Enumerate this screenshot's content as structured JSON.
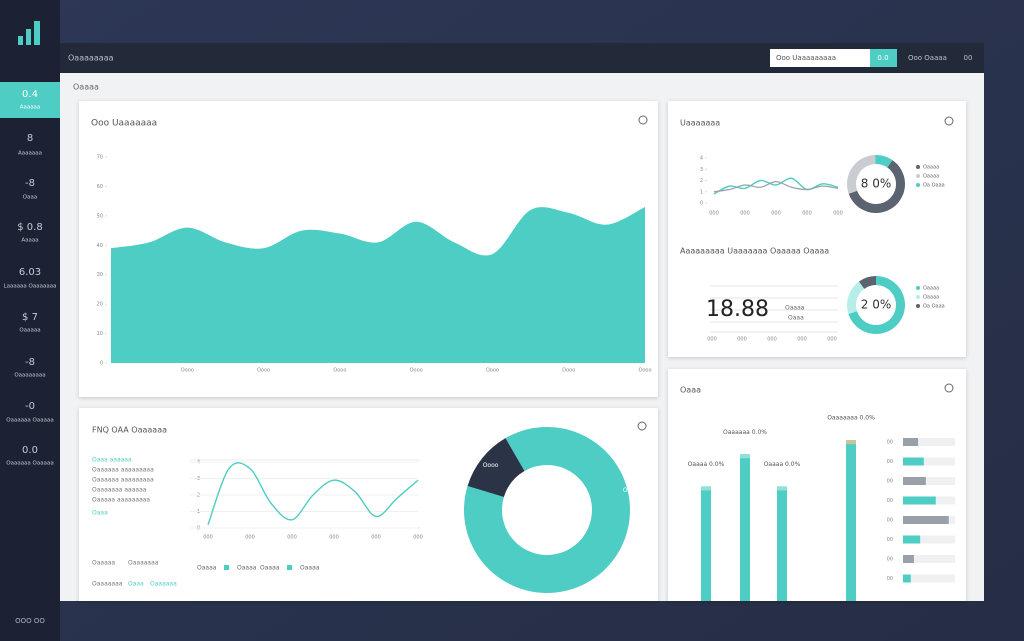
{
  "sidebar": {
    "items": [
      {
        "value": "0.4",
        "label": "Aaaaaa"
      },
      {
        "value": "8",
        "label": "Aaaaaaa"
      },
      {
        "value": "-8",
        "label": "Oaaa"
      },
      {
        "value": "$ 0.8",
        "label": "Aaaaa"
      },
      {
        "value": "6.03",
        "label": "Laaaaaa Oaaaaaaa"
      },
      {
        "value": "$ 7",
        "label": "Oaaaaa"
      },
      {
        "value": "-8",
        "label": "Oaaaaaaaa"
      },
      {
        "value": "-0",
        "label": "Oaaaaaa Oaaaaa"
      },
      {
        "value": "0.0",
        "label": "Oaaaaaa Oaaaaa"
      }
    ],
    "footer": "OOO OO"
  },
  "header": {
    "title": "Oaaaaaaaa",
    "search": "Ooo Uaaaaaaaaa",
    "button": "0.0",
    "user": "Ooo Oaaaa",
    "icon": "00"
  },
  "breadcrumb": "Oaaaa",
  "panel_text": {
    "list": [
      "Oaaa aaaaaa",
      "Oaaaaaa aaaaaaaaa",
      "Oaaaaaa aaaaaaaaa",
      "Oaaaaaaa aaaaaa",
      "Oaaaaa aaaaaaaaa",
      "Oaaa"
    ],
    "legend": [
      "Oaaaa",
      "Oaaaa",
      "Oaaaa",
      "Oaaaa"
    ],
    "notes": [
      "Oaaaaa",
      "Oaaaaaaa",
      "Oaaaaaaa",
      "Oaaa",
      "Oaaaaaa"
    ]
  },
  "chart_data": [
    {
      "type": "area",
      "title": "Ooo Uaaaaaaa",
      "categories": [
        null,
        null,
        "Oooo",
        null,
        "Oooo",
        null,
        "Oooo",
        null,
        "Oooo",
        null,
        "Oooo",
        null,
        "Oooo",
        null,
        "Oooo"
      ],
      "values": [
        39,
        41,
        46,
        41,
        39,
        45,
        44,
        41,
        48,
        41,
        37,
        52,
        51,
        47,
        53
      ],
      "color": "#4ecdc4",
      "ylim": [
        0,
        70
      ],
      "yticks": [
        0,
        10,
        20,
        30,
        40,
        50,
        60,
        70
      ]
    },
    {
      "type": "line",
      "title": "Uaaaaaaa",
      "categories": [
        "000",
        null,
        "000",
        null,
        "000",
        null,
        "000",
        null,
        "000"
      ],
      "series": [
        {
          "color": "#4ecdc4",
          "values": [
            0.8,
            1.5,
            1.3,
            2.0,
            1.6,
            2.2,
            1.2,
            1.7,
            1.4
          ]
        },
        {
          "color": "#9aa0a8",
          "values": [
            1.0,
            1.2,
            1.6,
            1.4,
            1.9,
            1.4,
            1.2,
            1.5,
            1.3
          ]
        }
      ],
      "ylim": [
        0,
        4
      ],
      "yticks": [
        0,
        1,
        2,
        3,
        4
      ]
    },
    {
      "type": "pie",
      "center_label": "8 0%",
      "categories": [
        "Oaaaa",
        "Oaaaa",
        "Oa Oaaa"
      ],
      "values": [
        60,
        30,
        10
      ],
      "colors": [
        "#5b6270",
        "#c9ccd1",
        "#4ecdc4"
      ]
    },
    {
      "type": "kpi",
      "title": "Aaaaaaaaa Uaaaaaaa Oaaaaa Oaaaa",
      "value": "18.88",
      "labels": [
        "Oaaaa",
        "Oaaa"
      ],
      "categories": [
        "000",
        "000",
        "000",
        "000",
        "000"
      ]
    },
    {
      "type": "pie",
      "center_label": "2 0%",
      "categories": [
        "Oaaaa",
        "Oaaaa",
        "Oa Oaaa"
      ],
      "values": [
        70,
        20,
        10
      ],
      "colors": [
        "#4ecdc4",
        "#b6efe9",
        "#5b6270"
      ]
    },
    {
      "type": "line",
      "title": "FNQ OAA Oaaaaaa",
      "categories": [
        "000",
        null,
        "000",
        null,
        "000",
        null,
        "000",
        null,
        "000",
        null,
        "000"
      ],
      "series": [
        {
          "color": "#4ecdc4",
          "values": [
            0.2,
            3.6,
            3.6,
            1.5,
            0.5,
            2.0,
            2.9,
            2.2,
            0.7,
            1.8,
            2.9
          ]
        }
      ],
      "ylim": [
        0,
        4
      ],
      "yticks": [
        0,
        1,
        2,
        3,
        4
      ]
    },
    {
      "type": "pie",
      "categories": [
        "Oooo",
        "Oooo"
      ],
      "values": [
        88,
        12
      ],
      "colors": [
        "#4ecdc4",
        "#2b3447"
      ]
    },
    {
      "type": "bar",
      "title": "Oaaa",
      "categories": [
        null,
        null,
        null,
        null
      ],
      "values": [
        57,
        73,
        57,
        80
      ],
      "annotations": [
        "Oaaaa 0.0%",
        "Oaaaaaa 0.0%",
        "Oaaaa 0.0%",
        "Oaaaaaaa 0.0%"
      ],
      "ylim": [
        0,
        100
      ],
      "color": "#4ecdc4"
    },
    {
      "type": "hbar",
      "categories": [
        "00",
        "00",
        "00",
        "00",
        "00",
        "00",
        "00",
        "00"
      ],
      "values": [
        29,
        40,
        44,
        63,
        88,
        33,
        21,
        15
      ],
      "colors": [
        "#9aa0a8",
        "#4ecdc4",
        "#9aa0a8",
        "#4ecdc4",
        "#9aa0a8",
        "#4ecdc4",
        "#9aa0a8",
        "#4ecdc4"
      ],
      "xlim": [
        0,
        100
      ]
    }
  ]
}
